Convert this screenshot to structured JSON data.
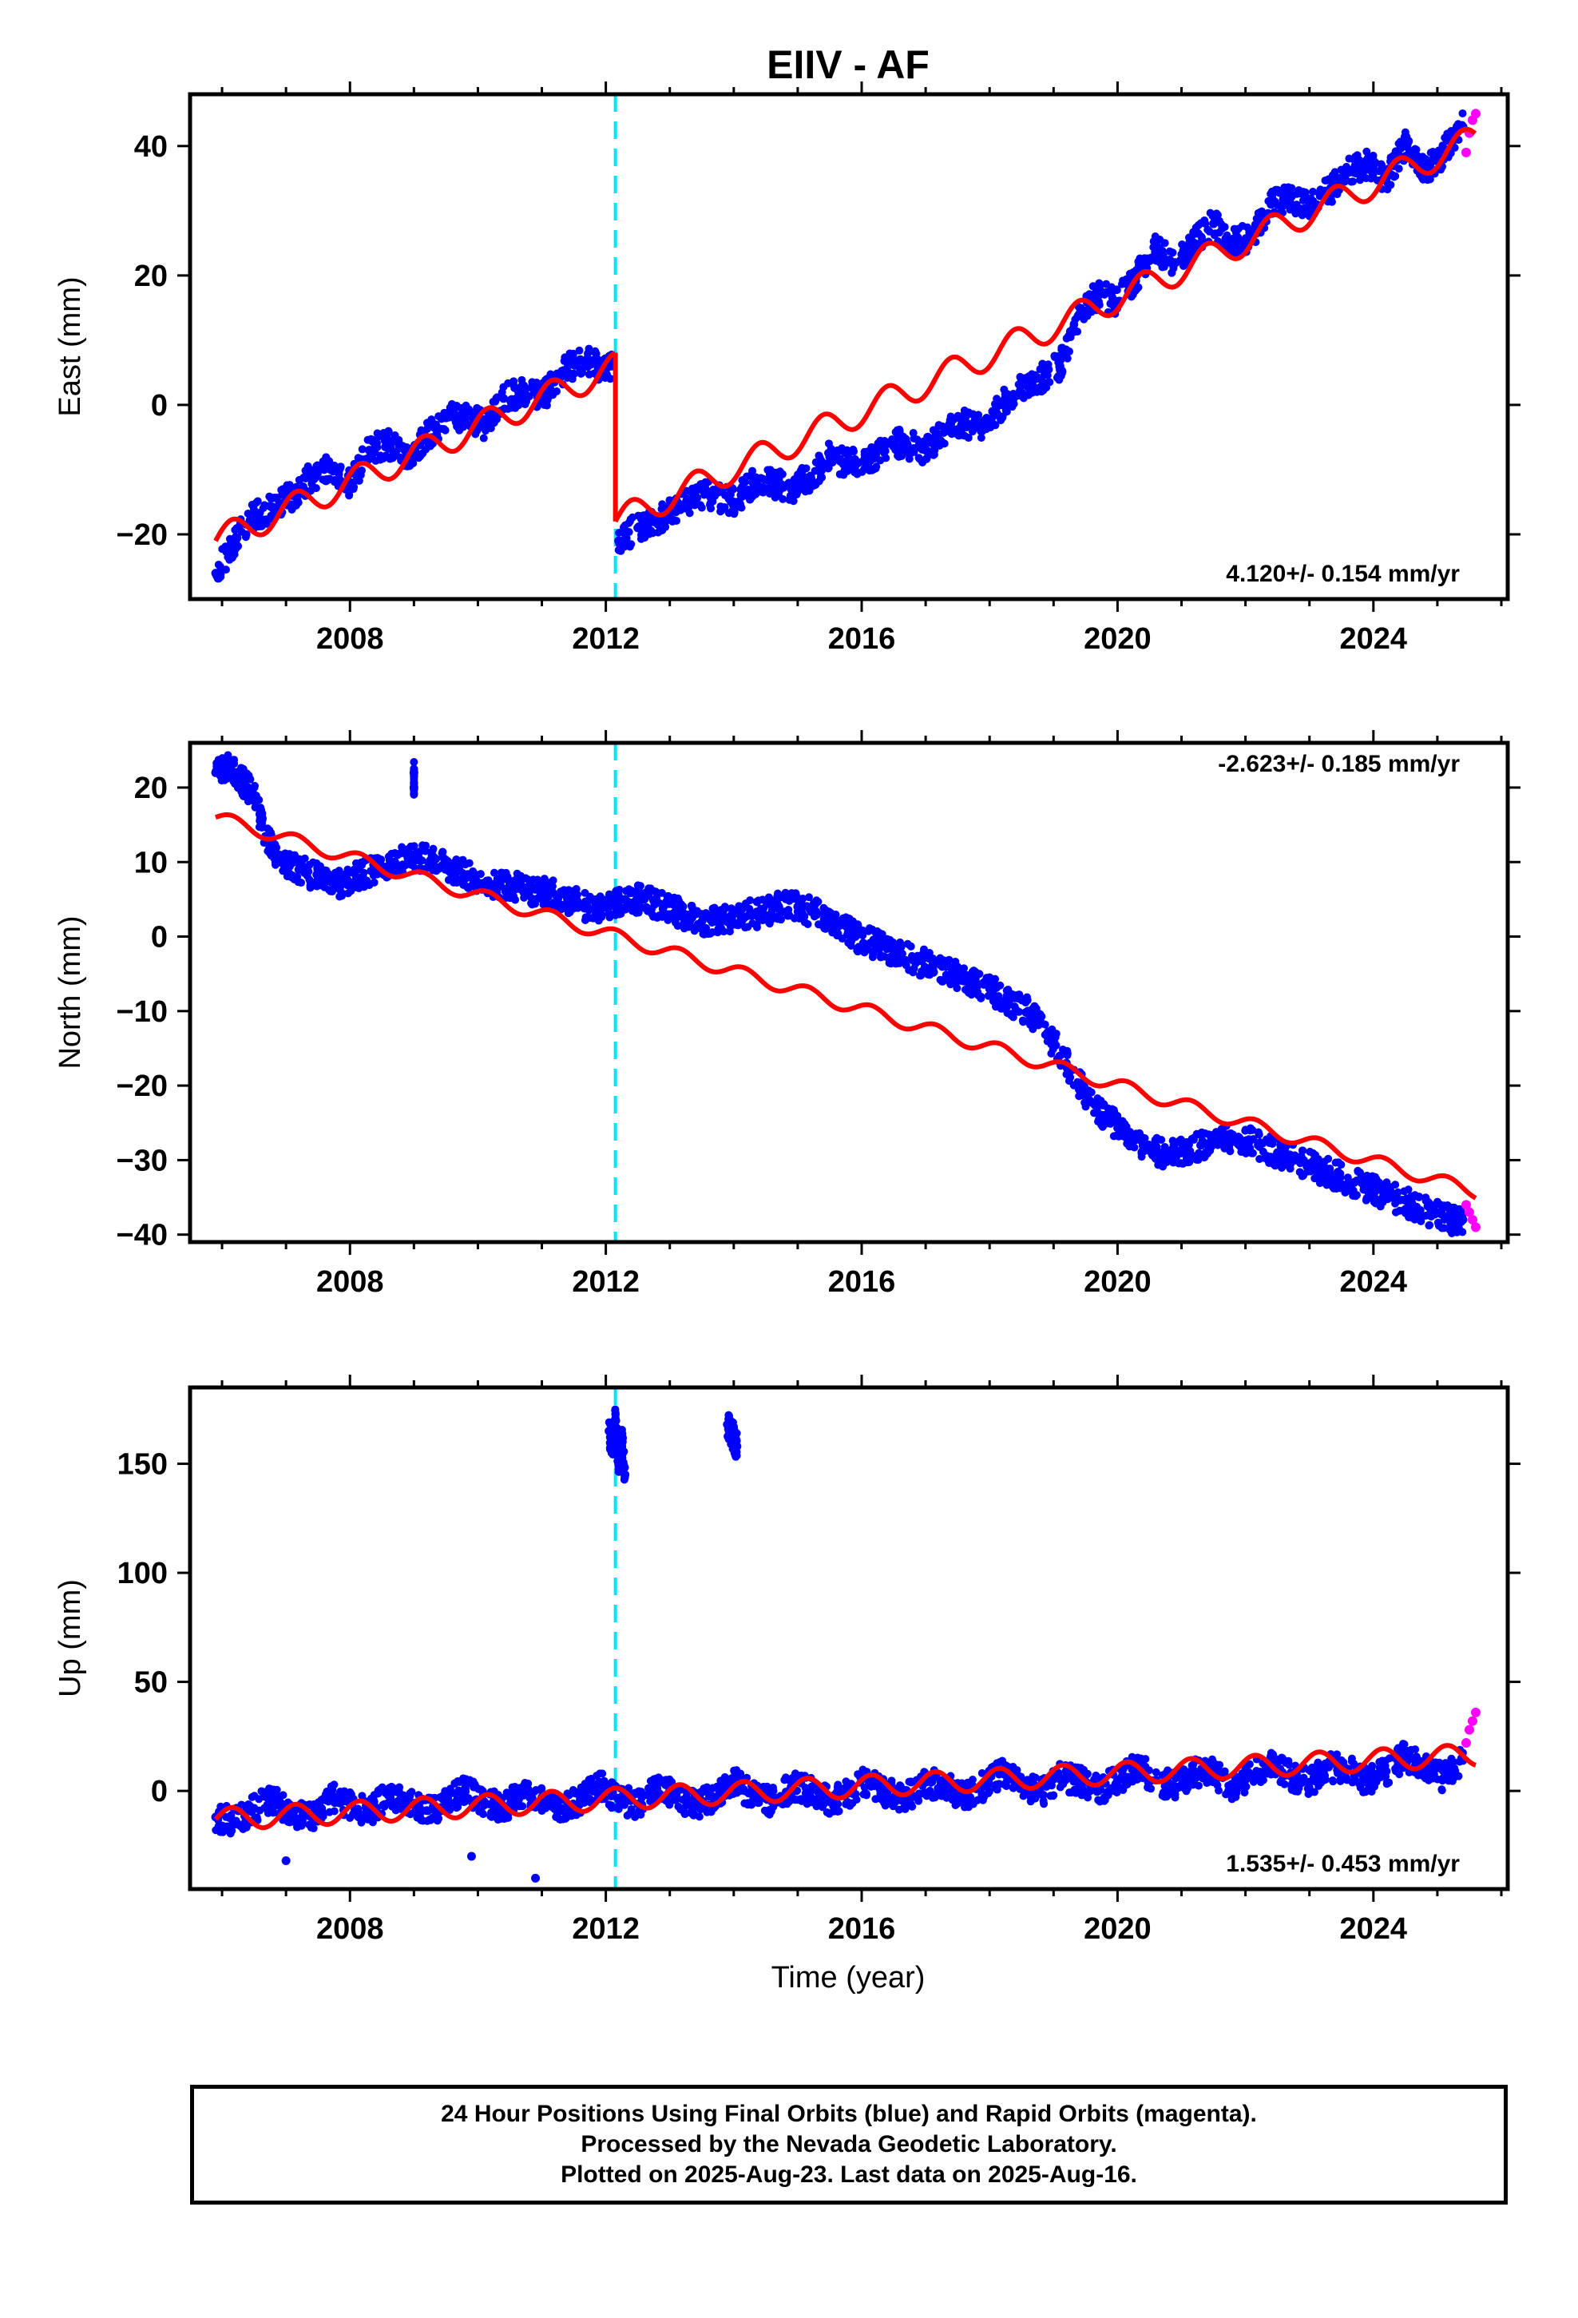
{
  "title": "EIIV - AF",
  "xlabel": "Time (year)",
  "footer": {
    "line1": "24 Hour Positions Using Final Orbits (blue) and Rapid Orbits (magenta).",
    "line2": "Processed by the Nevada Geodetic Laboratory.",
    "line3": "Plotted on 2025-Aug-23. Last data on 2025-Aug-16."
  },
  "colors": {
    "final": "#0000ff",
    "rapid": "#ff00ff",
    "model": "#ff0000",
    "event": "#00e5ff"
  },
  "event_year": 2012.15,
  "chart_data": [
    {
      "type": "scatter",
      "component": "east",
      "ylabel": "East (mm)",
      "ylim": [
        -30,
        48
      ],
      "xlim": [
        2005.5,
        2026.1
      ],
      "xticks": [
        2008,
        2012,
        2016,
        2020,
        2024
      ],
      "yticks": [
        -20,
        0,
        20,
        40
      ],
      "rate_label": "4.120+/- 0.154 mm/yr",
      "rate_position": "bottom-right",
      "model": {
        "segments": [
          {
            "x0": 2005.9,
            "x1": 2012.15,
            "y0": -21,
            "slope": 4.3,
            "amp": 2.2
          },
          {
            "x0": 2012.15,
            "x1": 2025.6,
            "y0": -18,
            "slope": 4.4,
            "amp": 2.2
          }
        ]
      },
      "final_series": [
        [
          2005.9,
          -26
        ],
        [
          2006.2,
          -21
        ],
        [
          2006.5,
          -17
        ],
        [
          2006.8,
          -16
        ],
        [
          2007.1,
          -14
        ],
        [
          2007.4,
          -11
        ],
        [
          2007.7,
          -10
        ],
        [
          2008.0,
          -12
        ],
        [
          2008.3,
          -7
        ],
        [
          2008.6,
          -6
        ],
        [
          2008.9,
          -8
        ],
        [
          2009.2,
          -5
        ],
        [
          2009.5,
          -2
        ],
        [
          2009.8,
          -2
        ],
        [
          2010.1,
          -3
        ],
        [
          2010.4,
          1
        ],
        [
          2010.7,
          2
        ],
        [
          2011.0,
          1
        ],
        [
          2011.3,
          5
        ],
        [
          2011.6,
          7
        ],
        [
          2011.9,
          6
        ],
        [
          2012.1,
          6
        ],
        [
          2012.2,
          -21
        ],
        [
          2012.5,
          -19
        ],
        [
          2012.8,
          -18
        ],
        [
          2013.1,
          -16
        ],
        [
          2013.4,
          -14
        ],
        [
          2013.7,
          -14
        ],
        [
          2014.0,
          -15
        ],
        [
          2014.3,
          -12
        ],
        [
          2014.6,
          -12
        ],
        [
          2014.9,
          -13
        ],
        [
          2015.2,
          -11
        ],
        [
          2015.5,
          -8
        ],
        [
          2015.8,
          -9
        ],
        [
          2016.1,
          -9
        ],
        [
          2016.4,
          -6
        ],
        [
          2016.7,
          -6
        ],
        [
          2017.0,
          -7
        ],
        [
          2017.3,
          -4
        ],
        [
          2017.6,
          -3
        ],
        [
          2017.9,
          -3
        ],
        [
          2018.2,
          0
        ],
        [
          2018.5,
          3
        ],
        [
          2018.8,
          4
        ],
        [
          2019.1,
          6
        ],
        [
          2019.4,
          14
        ],
        [
          2019.7,
          17
        ],
        [
          2020.0,
          16
        ],
        [
          2020.3,
          20
        ],
        [
          2020.6,
          24
        ],
        [
          2020.9,
          22
        ],
        [
          2021.2,
          25
        ],
        [
          2021.5,
          28
        ],
        [
          2021.8,
          25
        ],
        [
          2022.1,
          26
        ],
        [
          2022.4,
          31
        ],
        [
          2022.7,
          32
        ],
        [
          2023.0,
          31
        ],
        [
          2023.3,
          33
        ],
        [
          2023.6,
          36
        ],
        [
          2023.9,
          37
        ],
        [
          2024.2,
          35
        ],
        [
          2024.5,
          40
        ],
        [
          2024.8,
          36
        ],
        [
          2025.1,
          39
        ],
        [
          2025.4,
          43
        ]
      ],
      "rapid_series": [
        [
          2025.45,
          39
        ],
        [
          2025.5,
          42
        ],
        [
          2025.55,
          44
        ],
        [
          2025.6,
          45
        ]
      ]
    },
    {
      "type": "scatter",
      "component": "north",
      "ylabel": "North (mm)",
      "ylim": [
        -41,
        26
      ],
      "xlim": [
        2005.5,
        2026.1
      ],
      "xticks": [
        2008,
        2012,
        2016,
        2020,
        2024
      ],
      "yticks": [
        -40,
        -30,
        -20,
        -10,
        0,
        10,
        20
      ],
      "rate_label": "-2.623+/- 0.185 mm/yr",
      "rate_position": "top-right",
      "model": {
        "segments": [
          {
            "x0": 2005.9,
            "x1": 2025.6,
            "y0": 16,
            "slope": -2.55,
            "amp": 0.9
          }
        ]
      },
      "final_series": [
        [
          2005.9,
          22
        ],
        [
          2006.1,
          23
        ],
        [
          2006.3,
          21
        ],
        [
          2006.5,
          19
        ],
        [
          2006.7,
          13
        ],
        [
          2006.9,
          10
        ],
        [
          2007.2,
          9
        ],
        [
          2007.5,
          8
        ],
        [
          2007.8,
          7
        ],
        [
          2008.1,
          8
        ],
        [
          2008.4,
          9
        ],
        [
          2008.7,
          10
        ],
        [
          2009.0,
          11
        ],
        [
          2009.3,
          10
        ],
        [
          2009.6,
          9
        ],
        [
          2009.9,
          8
        ],
        [
          2010.2,
          7
        ],
        [
          2010.5,
          7
        ],
        [
          2010.8,
          6
        ],
        [
          2011.1,
          6
        ],
        [
          2011.4,
          5
        ],
        [
          2011.7,
          4
        ],
        [
          2012.0,
          4
        ],
        [
          2012.3,
          5
        ],
        [
          2012.6,
          5
        ],
        [
          2012.9,
          4
        ],
        [
          2013.2,
          3
        ],
        [
          2013.5,
          2
        ],
        [
          2013.8,
          2
        ],
        [
          2014.1,
          3
        ],
        [
          2014.4,
          3
        ],
        [
          2014.7,
          4
        ],
        [
          2015.0,
          4
        ],
        [
          2015.3,
          3
        ],
        [
          2015.6,
          2
        ],
        [
          2015.9,
          0
        ],
        [
          2016.2,
          -1
        ],
        [
          2016.5,
          -2
        ],
        [
          2016.8,
          -3
        ],
        [
          2017.1,
          -4
        ],
        [
          2017.4,
          -5
        ],
        [
          2017.7,
          -6
        ],
        [
          2018.0,
          -7
        ],
        [
          2018.3,
          -9
        ],
        [
          2018.6,
          -10
        ],
        [
          2018.9,
          -13
        ],
        [
          2019.2,
          -17
        ],
        [
          2019.5,
          -21
        ],
        [
          2019.8,
          -24
        ],
        [
          2020.1,
          -26
        ],
        [
          2020.4,
          -28
        ],
        [
          2020.7,
          -29
        ],
        [
          2021.0,
          -29
        ],
        [
          2021.3,
          -28
        ],
        [
          2021.6,
          -27
        ],
        [
          2021.9,
          -27
        ],
        [
          2022.2,
          -28
        ],
        [
          2022.5,
          -29
        ],
        [
          2022.8,
          -30
        ],
        [
          2023.1,
          -31
        ],
        [
          2023.4,
          -32
        ],
        [
          2023.7,
          -33
        ],
        [
          2024.0,
          -34
        ],
        [
          2024.3,
          -35
        ],
        [
          2024.6,
          -36
        ],
        [
          2024.9,
          -37
        ],
        [
          2025.2,
          -38
        ],
        [
          2025.4,
          -38
        ],
        [
          2009.0,
          22
        ],
        [
          2009.0,
          20
        ]
      ],
      "rapid_series": [
        [
          2025.45,
          -36
        ],
        [
          2025.5,
          -37
        ],
        [
          2025.55,
          -38
        ],
        [
          2025.6,
          -39
        ]
      ]
    },
    {
      "type": "scatter",
      "component": "up",
      "ylabel": "Up (mm)",
      "ylim": [
        -45,
        185
      ],
      "xlim": [
        2005.5,
        2026.1
      ],
      "xticks": [
        2008,
        2012,
        2016,
        2020,
        2024
      ],
      "yticks": [
        0,
        50,
        100,
        150
      ],
      "rate_label": "1.535+/- 0.453 mm/yr",
      "rate_position": "bottom-right",
      "model": {
        "segments": [
          {
            "x0": 2005.9,
            "x1": 2025.6,
            "y0": -13,
            "slope": 1.5,
            "amp": 5
          }
        ]
      },
      "final_series": [
        [
          2005.9,
          -12
        ],
        [
          2006.2,
          -14
        ],
        [
          2006.5,
          -8
        ],
        [
          2006.8,
          -4
        ],
        [
          2007.1,
          -10
        ],
        [
          2007.4,
          -12
        ],
        [
          2007.7,
          -3
        ],
        [
          2008.0,
          -6
        ],
        [
          2008.3,
          -10
        ],
        [
          2008.6,
          -2
        ],
        [
          2008.9,
          -4
        ],
        [
          2009.2,
          -9
        ],
        [
          2009.5,
          -6
        ],
        [
          2009.8,
          1
        ],
        [
          2010.1,
          -5
        ],
        [
          2010.4,
          -8
        ],
        [
          2010.7,
          -1
        ],
        [
          2011.0,
          -3
        ],
        [
          2011.3,
          -8
        ],
        [
          2011.6,
          -4
        ],
        [
          2011.9,
          3
        ],
        [
          2012.2,
          -4
        ],
        [
          2012.5,
          -6
        ],
        [
          2012.8,
          1
        ],
        [
          2013.1,
          -2
        ],
        [
          2013.4,
          -7
        ],
        [
          2013.7,
          -3
        ],
        [
          2014.0,
          4
        ],
        [
          2014.3,
          -2
        ],
        [
          2014.6,
          -5
        ],
        [
          2014.9,
          2
        ],
        [
          2015.2,
          0
        ],
        [
          2015.5,
          -5
        ],
        [
          2015.8,
          -1
        ],
        [
          2016.1,
          5
        ],
        [
          2016.4,
          -1
        ],
        [
          2016.7,
          -3
        ],
        [
          2017.0,
          4
        ],
        [
          2017.3,
          2
        ],
        [
          2017.6,
          -3
        ],
        [
          2017.9,
          2
        ],
        [
          2018.2,
          8
        ],
        [
          2018.5,
          2
        ],
        [
          2018.8,
          -1
        ],
        [
          2019.1,
          6
        ],
        [
          2019.4,
          5
        ],
        [
          2019.7,
          0
        ],
        [
          2020.0,
          5
        ],
        [
          2020.3,
          11
        ],
        [
          2020.6,
          5
        ],
        [
          2020.9,
          2
        ],
        [
          2021.2,
          9
        ],
        [
          2021.5,
          8
        ],
        [
          2021.8,
          2
        ],
        [
          2022.1,
          7
        ],
        [
          2022.4,
          13
        ],
        [
          2022.7,
          7
        ],
        [
          2023.0,
          4
        ],
        [
          2023.3,
          11
        ],
        [
          2023.6,
          10
        ],
        [
          2023.9,
          4
        ],
        [
          2024.2,
          9
        ],
        [
          2024.5,
          16
        ],
        [
          2024.8,
          10
        ],
        [
          2025.1,
          6
        ],
        [
          2025.4,
          14
        ],
        [
          2012.05,
          165
        ],
        [
          2012.1,
          158
        ],
        [
          2012.15,
          170
        ],
        [
          2012.2,
          150
        ],
        [
          2012.25,
          162
        ],
        [
          2012.3,
          145
        ],
        [
          2013.9,
          168
        ],
        [
          2014.0,
          162
        ],
        [
          2014.05,
          158
        ],
        [
          2007.0,
          -32
        ],
        [
          2010.9,
          -40
        ],
        [
          2009.9,
          -30
        ]
      ],
      "rapid_series": [
        [
          2025.45,
          22
        ],
        [
          2025.5,
          28
        ],
        [
          2025.55,
          32
        ],
        [
          2025.6,
          36
        ]
      ]
    }
  ]
}
